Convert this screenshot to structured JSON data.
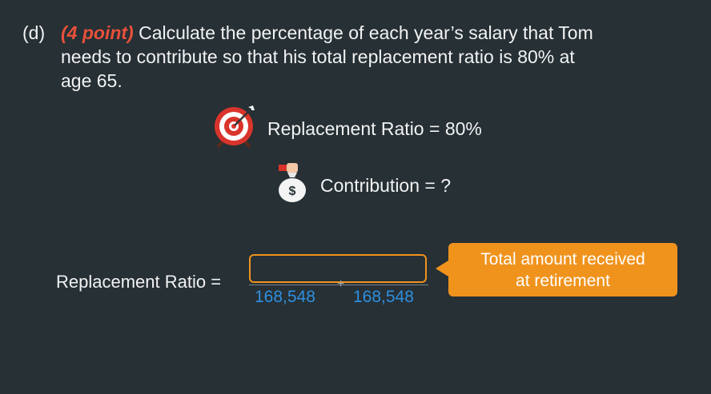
{
  "question": {
    "number": "(d)",
    "points": "(4 point)",
    "text_line1": "Calculate the percentage of each year’s salary that Tom",
    "text_line2": "needs to contribute so that his total replacement ratio is 80% at",
    "text_line3": "age 65."
  },
  "target": {
    "icon": "target-icon",
    "label": "Replacement Ratio = 80%"
  },
  "contribution": {
    "icon": "money-bag-icon",
    "label": "Contribution = ?"
  },
  "formula": {
    "label": "Replacement Ratio =",
    "numerator_box": "",
    "plus": "+",
    "denominator_1": "168,548",
    "denominator_2": "168,548"
  },
  "callout": {
    "line1": "Total amount received",
    "line2": "at retirement"
  },
  "colors": {
    "background": "#263035",
    "accent_orange": "#f0931d",
    "points_red": "#e8503a",
    "denominator_blue": "#2f8fe0"
  }
}
